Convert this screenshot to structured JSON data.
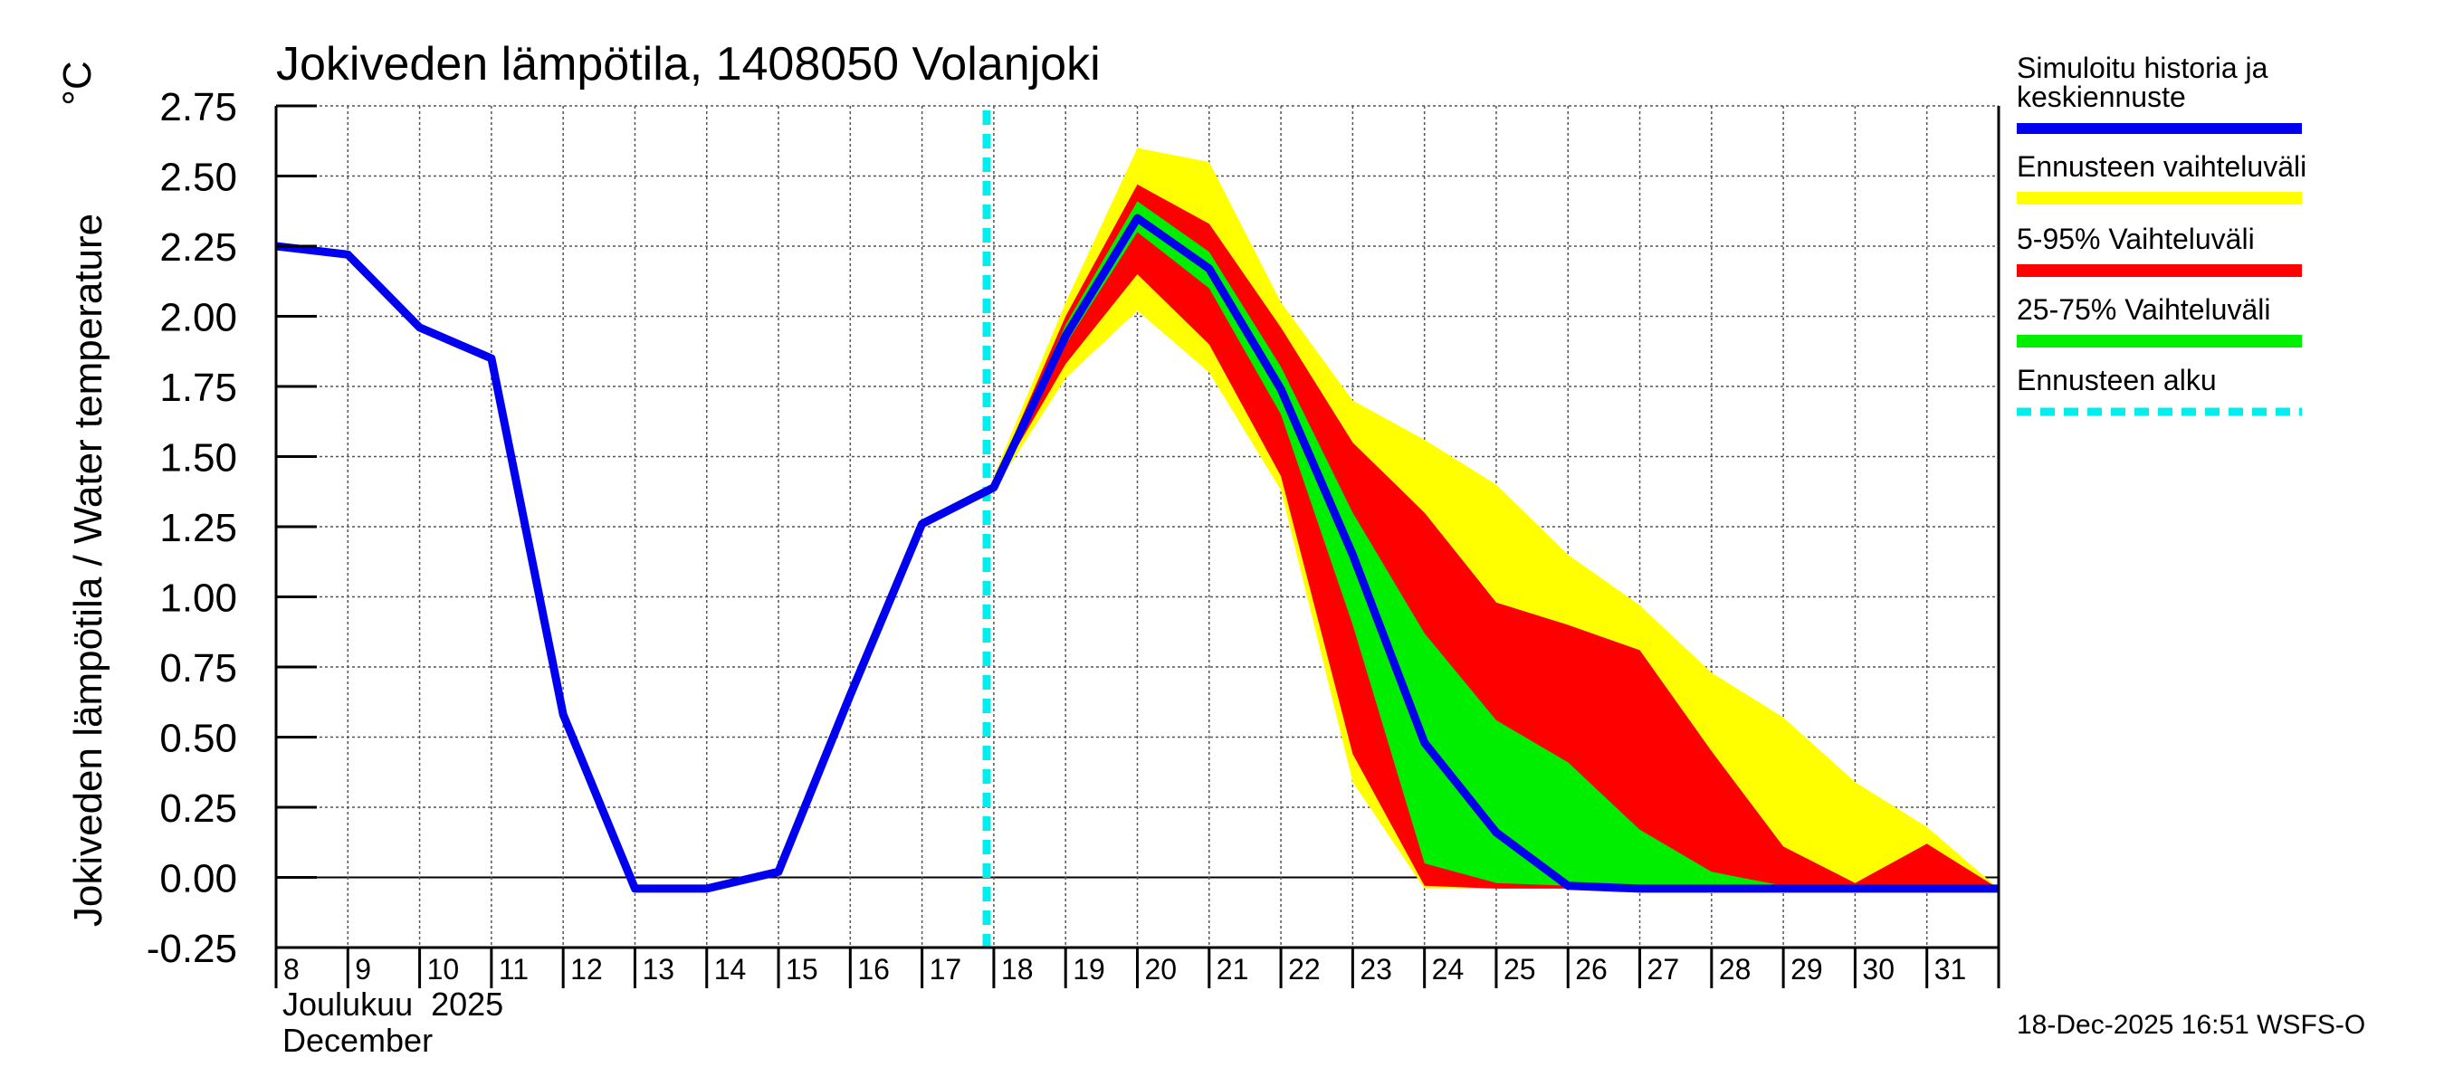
{
  "chart_data": {
    "type": "area",
    "title": "Jokiveden lämpötila, 1408050 Volanjoki",
    "ylabel": "Jokiveden lämpötila / Water temperature",
    "yunit": "°C",
    "ylim": [
      -0.25,
      2.75
    ],
    "yticks": [
      -0.25,
      0.0,
      0.25,
      0.5,
      0.75,
      1.0,
      1.25,
      1.5,
      1.75,
      2.0,
      2.25,
      2.5,
      2.75
    ],
    "ytick_labels": [
      "-0.25",
      "0.00",
      "0.25",
      "0.50",
      "0.75",
      "1.00",
      "1.25",
      "1.50",
      "1.75",
      "2.00",
      "2.25",
      "2.50",
      "2.75"
    ],
    "xlim": [
      8,
      32
    ],
    "xticks": [
      8,
      9,
      10,
      11,
      12,
      13,
      14,
      15,
      16,
      17,
      18,
      19,
      20,
      21,
      22,
      23,
      24,
      25,
      26,
      27,
      28,
      29,
      30,
      31
    ],
    "xtick_labels": [
      "8",
      "9",
      "10",
      "11",
      "12",
      "13",
      "14",
      "15",
      "16",
      "17",
      "18",
      "19",
      "20",
      "21",
      "22",
      "23",
      "24",
      "25",
      "26",
      "27",
      "28",
      "29",
      "30",
      "31"
    ],
    "month_label_fi": "Joulukuu  2025",
    "month_label_en": "December",
    "grid": true,
    "forecast_start": 17.9,
    "history": {
      "name": "Simuloitu historia ja keskiennuste",
      "color": "#0000ee",
      "x": [
        8,
        9,
        10,
        11,
        12,
        13,
        14,
        15,
        16,
        17,
        18
      ],
      "y": [
        2.25,
        2.22,
        1.96,
        1.85,
        0.58,
        -0.04,
        -0.04,
        0.02,
        0.65,
        1.26,
        1.39
      ]
    },
    "forecast": {
      "x": [
        18,
        19,
        20,
        21,
        22,
        23,
        24,
        25,
        26,
        27,
        28,
        29,
        30,
        31,
        32
      ],
      "median": [
        1.39,
        1.93,
        2.35,
        2.17,
        1.74,
        1.15,
        0.48,
        0.16,
        -0.03,
        -0.04,
        -0.04,
        -0.04,
        -0.04,
        -0.04,
        -0.04
      ],
      "full_low": [
        1.38,
        1.78,
        2.02,
        1.8,
        1.38,
        0.34,
        -0.04,
        -0.04,
        -0.04,
        -0.04,
        -0.04,
        -0.04,
        -0.04,
        -0.04,
        -0.04
      ],
      "full_high": [
        1.43,
        2.05,
        2.6,
        2.55,
        2.05,
        1.7,
        1.56,
        1.4,
        1.15,
        0.97,
        0.73,
        0.57,
        0.34,
        0.18,
        -0.04
      ],
      "p5": [
        1.39,
        1.83,
        2.15,
        1.9,
        1.43,
        0.44,
        -0.03,
        -0.04,
        -0.04,
        -0.04,
        -0.04,
        -0.04,
        -0.04,
        -0.04,
        -0.04
      ],
      "p95": [
        1.41,
        2.0,
        2.47,
        2.33,
        1.96,
        1.55,
        1.3,
        0.98,
        0.9,
        0.81,
        0.45,
        0.11,
        -0.02,
        0.12,
        -0.04
      ],
      "p25": [
        1.39,
        1.9,
        2.3,
        2.1,
        1.65,
        0.9,
        0.05,
        -0.02,
        -0.03,
        -0.04,
        -0.04,
        -0.04,
        -0.04,
        -0.04,
        -0.04
      ],
      "p75": [
        1.4,
        1.97,
        2.41,
        2.23,
        1.82,
        1.3,
        0.87,
        0.56,
        0.41,
        0.17,
        0.02,
        -0.03,
        -0.04,
        -0.04,
        -0.04
      ]
    },
    "legend": [
      {
        "label": "Simuloitu historia ja keskiennuste",
        "color": "#0000ee",
        "style": "solid"
      },
      {
        "label": "Ennusteen vaihteluväli",
        "color": "#ffff00",
        "style": "solid"
      },
      {
        "label": "5-95% Vaihteluväli",
        "color": "#ff0000",
        "style": "solid"
      },
      {
        "label": "25-75% Vaihteluväli",
        "color": "#00ee00",
        "style": "solid"
      },
      {
        "label": "Ennusteen alku",
        "color": "#00eeee",
        "style": "dashed"
      }
    ]
  },
  "legend_labels": {
    "history_line1": "Simuloitu historia ja",
    "history_line2": "keskiennuste",
    "range": "Ennusteen vaihteluväli",
    "p5_95": "5-95% Vaihteluväli",
    "p25_75": "25-75% Vaihteluväli",
    "start": "Ennusteen alku"
  },
  "footer": "18-Dec-2025 16:51 WSFS-O",
  "colors": {
    "history": "#0000ee",
    "range": "#ffff00",
    "p5_95": "#ff0000",
    "p25_75": "#00ee00",
    "forecast_start": "#00eeee",
    "grid": "#555555"
  }
}
